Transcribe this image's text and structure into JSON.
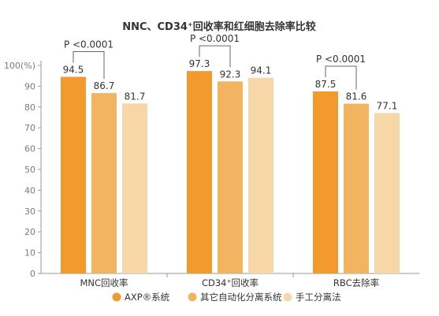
{
  "chart_data": {
    "type": "bar",
    "title": "NNC、CD34⁺回收率和红细胞去除率比较",
    "ylabel": "",
    "y_unit_label": "(%)",
    "ylim": [
      0,
      100
    ],
    "yticks": [
      0,
      10,
      20,
      30,
      40,
      50,
      60,
      70,
      80,
      90,
      100
    ],
    "grid": false,
    "legend_position": "bottom",
    "categories": [
      "MNC回收率",
      "CD34⁺回收率",
      "RBC去除率"
    ],
    "series": [
      {
        "name": "AXP®系统",
        "color": "#F29A2E",
        "values": [
          94.5,
          97.3,
          87.5
        ]
      },
      {
        "name": "其它自动化分离系统",
        "color": "#F2B461",
        "values": [
          86.7,
          92.3,
          81.6
        ]
      },
      {
        "name": "手工分离法",
        "color": "#F7D7A8",
        "values": [
          81.7,
          94.1,
          77.1
        ]
      }
    ],
    "annotations": [
      {
        "group": 0,
        "text": "P <0.0001"
      },
      {
        "group": 1,
        "text": "P <0.0001"
      },
      {
        "group": 2,
        "text": "P <0.0001"
      }
    ]
  }
}
